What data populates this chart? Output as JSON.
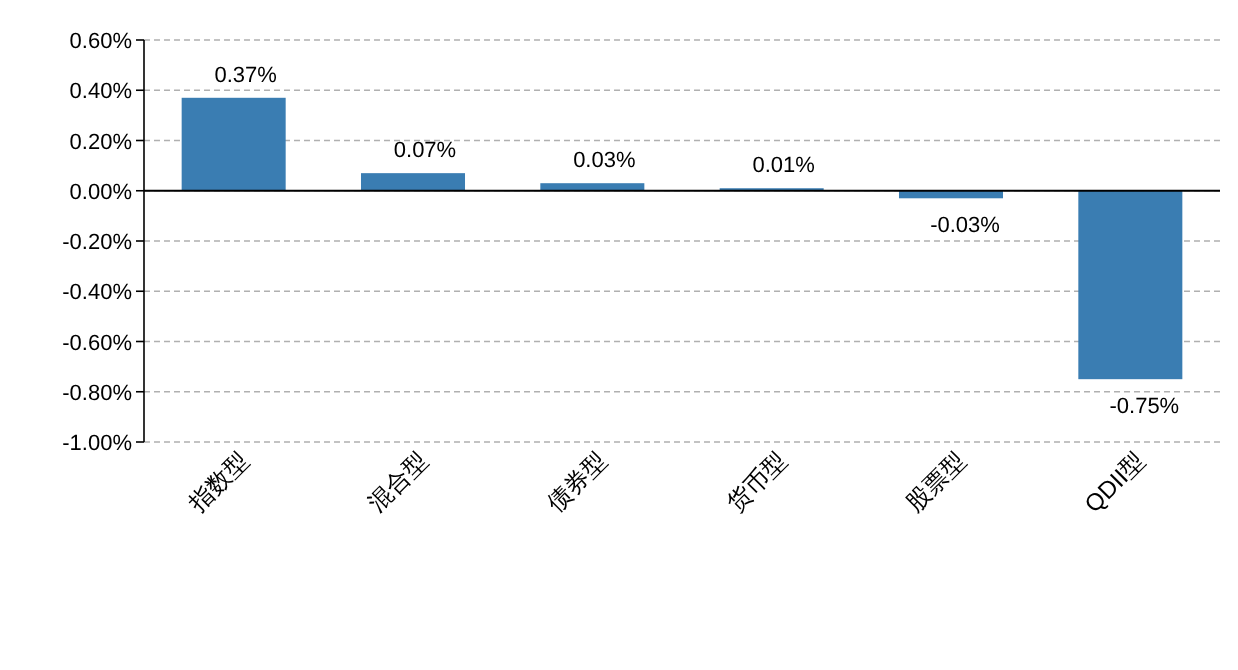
{
  "chart_data": {
    "type": "bar",
    "categories": [
      "指数型",
      "混合型",
      "债券型",
      "货币型",
      "股票型",
      "QDII型"
    ],
    "values": [
      0.37,
      0.07,
      0.03,
      0.01,
      -0.03,
      -0.75
    ],
    "color": "#3a7db2",
    "value_labels": [
      "0.37%",
      "0.07%",
      "0.03%",
      "0.01%",
      "-0.03%",
      "-0.75%"
    ],
    "ylim": [
      -1.0,
      0.6
    ],
    "yticks": [
      {
        "value": 0.6,
        "label": "0.60%"
      },
      {
        "value": 0.4,
        "label": "0.40%"
      },
      {
        "value": 0.2,
        "label": "0.20%"
      },
      {
        "value": 0,
        "label": "0.00%"
      },
      {
        "value": -0.2,
        "label": "-0.20%"
      },
      {
        "value": -0.4,
        "label": "-0.40%"
      },
      {
        "value": -0.6,
        "label": "-0.60%"
      },
      {
        "value": -0.8,
        "label": "-0.80%"
      },
      {
        "value": -1.0,
        "label": "-1.00%"
      }
    ],
    "grid": "y"
  }
}
